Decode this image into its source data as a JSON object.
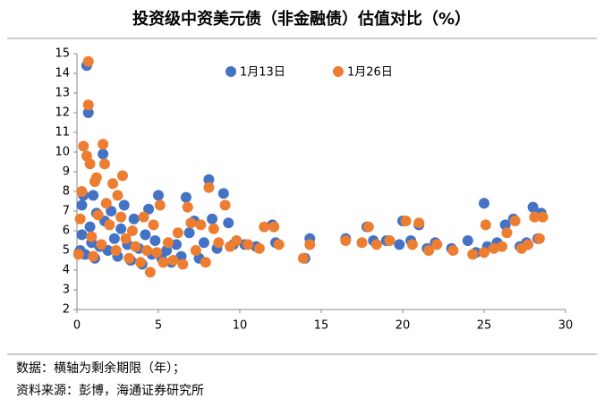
{
  "chart_data": {
    "type": "scatter",
    "title": "投资级中资美元债（非金融债）估值对比（%）",
    "notes": [
      "数据：横轴为剩余期限（年）；",
      "资料来源：彭博，海通证券研究所"
    ],
    "xlim": [
      0,
      30
    ],
    "xticks": [
      0,
      5,
      10,
      15,
      20,
      25,
      30
    ],
    "ylim": [
      2,
      15
    ],
    "yticks": [
      2,
      3,
      4,
      5,
      6,
      7,
      8,
      9,
      10,
      11,
      12,
      13,
      14,
      15
    ],
    "series": [
      {
        "name": "1月13日",
        "color": "#4472c4",
        "x": [
          0.2,
          0.3,
          0.3,
          0.4,
          0.5,
          0.6,
          0.7,
          0.8,
          0.9,
          1.0,
          1.1,
          1.2,
          1.4,
          1.6,
          1.7,
          1.9,
          2.1,
          2.3,
          2.5,
          2.7,
          2.9,
          3.1,
          3.3,
          3.5,
          3.8,
          4.0,
          4.2,
          4.4,
          4.6,
          4.8,
          5.0,
          5.2,
          5.5,
          5.8,
          6.1,
          6.4,
          6.7,
          6.9,
          7.2,
          7.5,
          7.8,
          8.1,
          8.3,
          8.6,
          9.0,
          9.3,
          9.6,
          10.3,
          11.0,
          12.0,
          12.2,
          14.0,
          14.3,
          16.5,
          17.8,
          18.2,
          19.0,
          19.8,
          20.0,
          20.5,
          21.0,
          21.5,
          22.0,
          23.0,
          24.0,
          24.5,
          25.0,
          25.2,
          25.8,
          26.3,
          26.8,
          27.2,
          27.6,
          28.0,
          28.3,
          28.5
        ],
        "values": [
          5.0,
          5.8,
          7.3,
          7.8,
          4.8,
          14.4,
          12.0,
          6.2,
          5.4,
          7.8,
          4.6,
          6.9,
          5.2,
          9.9,
          6.5,
          5.0,
          7.0,
          5.6,
          4.7,
          6.1,
          7.3,
          5.3,
          4.5,
          6.6,
          5.1,
          4.3,
          5.8,
          7.1,
          4.8,
          5.5,
          7.8,
          4.6,
          5.0,
          4.4,
          5.3,
          4.7,
          7.7,
          5.9,
          6.5,
          4.6,
          5.4,
          8.6,
          6.6,
          5.1,
          7.9,
          6.4,
          5.3,
          5.3,
          5.2,
          6.3,
          5.4,
          4.6,
          5.6,
          5.6,
          6.2,
          5.5,
          5.5,
          5.3,
          6.5,
          5.5,
          6.3,
          5.1,
          5.4,
          5.1,
          5.5,
          4.9,
          7.4,
          5.2,
          5.4,
          6.3,
          6.6,
          5.2,
          5.4,
          7.2,
          5.6,
          6.9
        ]
      },
      {
        "name": "1月26日",
        "color": "#ed7d31",
        "x": [
          0.1,
          0.2,
          0.3,
          0.4,
          0.6,
          0.7,
          0.7,
          0.8,
          0.9,
          1.0,
          1.1,
          1.2,
          1.3,
          1.5,
          1.6,
          1.7,
          1.8,
          2.0,
          2.2,
          2.4,
          2.5,
          2.7,
          2.8,
          3.0,
          3.2,
          3.4,
          3.6,
          3.9,
          4.1,
          4.3,
          4.5,
          4.7,
          4.9,
          5.1,
          5.3,
          5.6,
          5.9,
          6.2,
          6.5,
          6.8,
          7.0,
          7.3,
          7.6,
          7.9,
          8.1,
          8.4,
          8.7,
          9.1,
          9.4,
          9.8,
          10.5,
          11.2,
          11.5,
          12.1,
          12.4,
          13.9,
          14.3,
          16.5,
          17.5,
          17.9,
          18.4,
          19.2,
          20.2,
          20.6,
          21.0,
          21.6,
          22.1,
          23.1,
          24.3,
          25.0,
          25.1,
          25.6,
          26.1,
          26.4,
          26.9,
          27.3,
          27.7,
          28.1,
          28.4,
          28.6
        ],
        "values": [
          4.8,
          6.6,
          8.0,
          10.3,
          9.8,
          14.6,
          12.4,
          9.4,
          5.7,
          4.7,
          8.5,
          8.7,
          6.8,
          5.3,
          10.4,
          9.4,
          7.4,
          6.3,
          8.4,
          5.0,
          7.8,
          6.7,
          8.8,
          5.6,
          4.6,
          6.0,
          5.2,
          4.4,
          6.7,
          5.0,
          3.9,
          6.3,
          4.9,
          7.3,
          4.4,
          5.4,
          4.5,
          5.9,
          4.3,
          7.2,
          6.4,
          5.0,
          6.3,
          4.4,
          8.2,
          6.1,
          5.4,
          7.3,
          5.2,
          5.5,
          5.3,
          5.1,
          6.2,
          6.2,
          5.3,
          4.6,
          5.3,
          5.5,
          5.4,
          6.2,
          5.3,
          5.5,
          6.5,
          5.3,
          6.4,
          5.0,
          5.3,
          5.0,
          4.8,
          4.9,
          6.3,
          5.1,
          5.2,
          5.9,
          6.5,
          5.1,
          5.3,
          6.7,
          5.6,
          6.7
        ]
      }
    ]
  }
}
